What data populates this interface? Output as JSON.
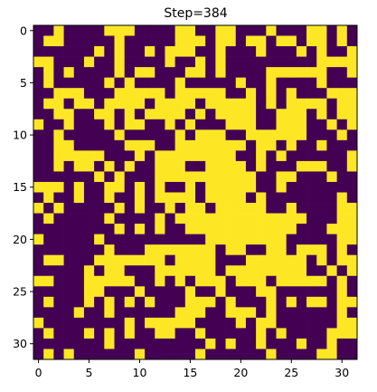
{
  "chart_data": {
    "type": "heatmap",
    "title": "Step=384",
    "xlabel": "",
    "ylabel": "",
    "xlim": [
      -0.5,
      31.5
    ],
    "ylim": [
      31.5,
      -0.5
    ],
    "x_ticks": [
      0,
      5,
      10,
      15,
      20,
      25,
      30
    ],
    "y_ticks": [
      0,
      5,
      10,
      15,
      20,
      25,
      30
    ],
    "colormap": {
      "0": "#440154",
      "1": "#fde725"
    },
    "grid": false,
    "grid_rows": [
      "00100001110000110011000100011010",
      "01100000100000111011011011011010",
      "00000010100101110010001000101001",
      "11000100100001001010000000001111",
      "01010000101100011010000111111001",
      "01000001010000100000100100001000",
      "00111000111110111110010101000111",
      "01101101111011110111110101111011",
      "00110011010111101011110011101011",
      "10010001011001010001110011100101",
      "00100000100000101110011111100010",
      "00110000011100111111101101001000",
      "00111110001011111111001010000001",
      "00101101010011100111101000111001",
      "00000010100011111111110011000100",
      "11101001101010010111110010000000",
      "01001001001011110111101000000010",
      "10100000101001011011111001000011",
      "01000001000010111111111111100011",
      "00000000101010011111111111000111",
      "10000010000000000111111110000011",
      "00000001000111111101100110111010",
      "01100011111110111100011111101011",
      "00000101100011111101111111100101",
      "11000111110010101110111011111010",
      "00000110001000010010001100000010",
      "01000101010100011101000101011011",
      "00001001000000111001110100000010",
      "10000000010111110000101100000011",
      "01000101010011001000001010000111",
      "00000001000000000101001000100100",
      "01010000001000001000000100001100"
    ]
  }
}
